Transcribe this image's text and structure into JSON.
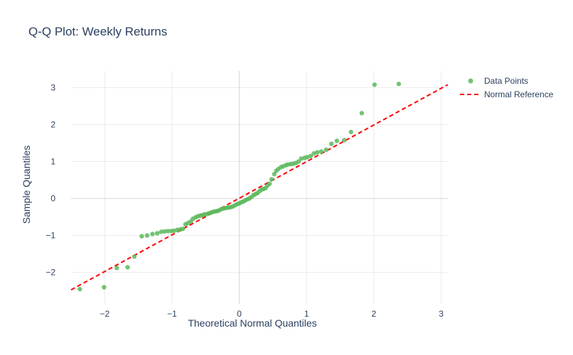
{
  "chart_data": {
    "type": "scatter",
    "title": "Q-Q Plot: Weekly Returns",
    "xlabel": "Theoretical Normal Quantiles",
    "ylabel": "Sample Quantiles",
    "xlim": [
      -2.5,
      3.1
    ],
    "ylim": [
      -2.85,
      3.45
    ],
    "x_ticks": [
      -2,
      -1,
      0,
      1,
      2,
      3
    ],
    "x_tick_labels": [
      "−2",
      "−1",
      "0",
      "1",
      "2",
      "3"
    ],
    "y_ticks": [
      -2,
      -1,
      0,
      1,
      2,
      3
    ],
    "y_tick_labels": [
      "−2",
      "−1",
      "0",
      "1",
      "2",
      "3"
    ],
    "grid": true,
    "legend_position": "top-right",
    "colors": {
      "points": "#5cb85c",
      "reference": "#ff0000",
      "grid": "#ebebeb",
      "zeroline": "#d6d6d6",
      "text": "#2a3f5f"
    },
    "series": [
      {
        "name": "Data Points",
        "mode": "markers",
        "x": [
          -2.37,
          -2.01,
          -1.82,
          -1.66,
          -1.56,
          -1.45,
          -1.37,
          -1.29,
          -1.22,
          -1.16,
          -1.11,
          -1.06,
          -1.01,
          -0.97,
          -0.92,
          -0.88,
          -0.84,
          -0.8,
          -0.76,
          -0.72,
          -0.69,
          -0.65,
          -0.62,
          -0.58,
          -0.55,
          -0.52,
          -0.48,
          -0.45,
          -0.42,
          -0.39,
          -0.36,
          -0.33,
          -0.3,
          -0.27,
          -0.24,
          -0.21,
          -0.18,
          -0.15,
          -0.12,
          -0.09,
          -0.06,
          -0.03,
          0.0,
          0.03,
          0.06,
          0.09,
          0.12,
          0.15,
          0.18,
          0.21,
          0.24,
          0.27,
          0.3,
          0.33,
          0.36,
          0.39,
          0.42,
          0.45,
          0.48,
          0.52,
          0.55,
          0.58,
          0.62,
          0.65,
          0.69,
          0.72,
          0.76,
          0.8,
          0.84,
          0.88,
          0.92,
          0.97,
          1.01,
          1.06,
          1.11,
          1.16,
          1.22,
          1.29,
          1.37,
          1.45,
          1.56,
          1.66,
          1.82,
          2.01,
          2.37
        ],
        "y": [
          -2.45,
          -2.4,
          -1.88,
          -1.86,
          -1.57,
          -1.02,
          -1.0,
          -0.96,
          -0.94,
          -0.9,
          -0.89,
          -0.88,
          -0.88,
          -0.87,
          -0.85,
          -0.84,
          -0.82,
          -0.7,
          -0.66,
          -0.62,
          -0.55,
          -0.51,
          -0.48,
          -0.46,
          -0.45,
          -0.43,
          -0.42,
          -0.4,
          -0.38,
          -0.36,
          -0.35,
          -0.34,
          -0.32,
          -0.29,
          -0.27,
          -0.26,
          -0.25,
          -0.24,
          -0.23,
          -0.21,
          -0.18,
          -0.15,
          -0.13,
          -0.1,
          -0.08,
          -0.05,
          -0.02,
          0.0,
          0.04,
          0.09,
          0.12,
          0.15,
          0.2,
          0.24,
          0.26,
          0.28,
          0.35,
          0.4,
          0.52,
          0.66,
          0.75,
          0.8,
          0.85,
          0.87,
          0.9,
          0.92,
          0.93,
          0.94,
          0.96,
          1.0,
          1.08,
          1.1,
          1.12,
          1.15,
          1.22,
          1.25,
          1.27,
          1.32,
          1.48,
          1.56,
          1.58,
          1.8,
          2.31,
          3.08,
          3.1
        ]
      },
      {
        "name": "Normal Reference",
        "mode": "lines",
        "dash": "dash",
        "x": [
          -2.5,
          3.1
        ],
        "y": [
          -2.47,
          3.08
        ]
      }
    ]
  }
}
